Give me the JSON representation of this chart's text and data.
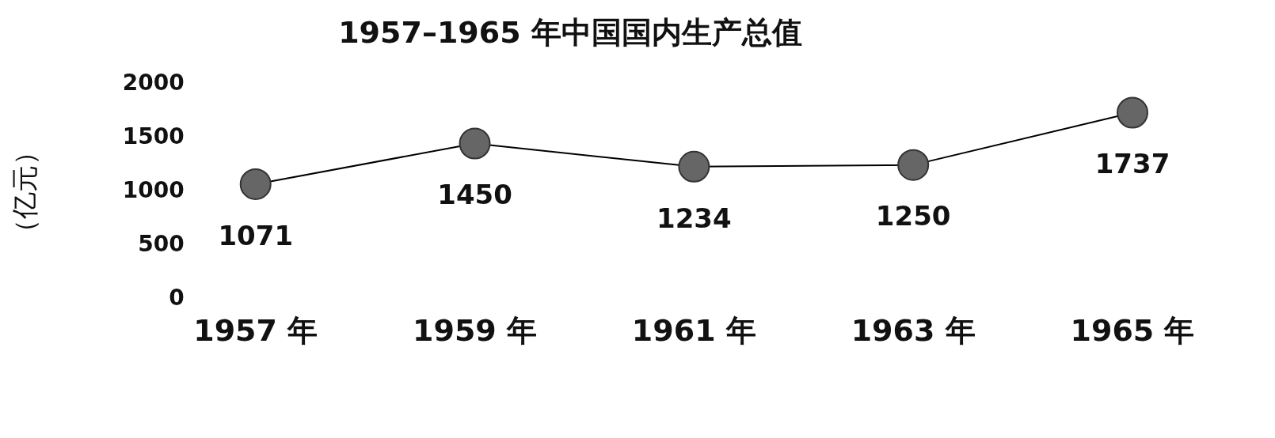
{
  "chart_data": {
    "type": "line",
    "title": "1957–1965 年中国国内生产总值",
    "ylabel": "（亿元）",
    "categories": [
      "1957 年",
      "1959 年",
      "1961 年",
      "1963 年",
      "1965 年"
    ],
    "series": [
      {
        "color": "#666666",
        "values": [
          1071,
          1450,
          1234,
          1250,
          1737
        ]
      }
    ],
    "ylim": [
      0,
      2000
    ],
    "yticks": [
      0,
      500,
      1000,
      1500,
      2000
    ],
    "grid": false,
    "legend": false,
    "marker": "circle",
    "line_style": "solid",
    "data_labels": true
  }
}
